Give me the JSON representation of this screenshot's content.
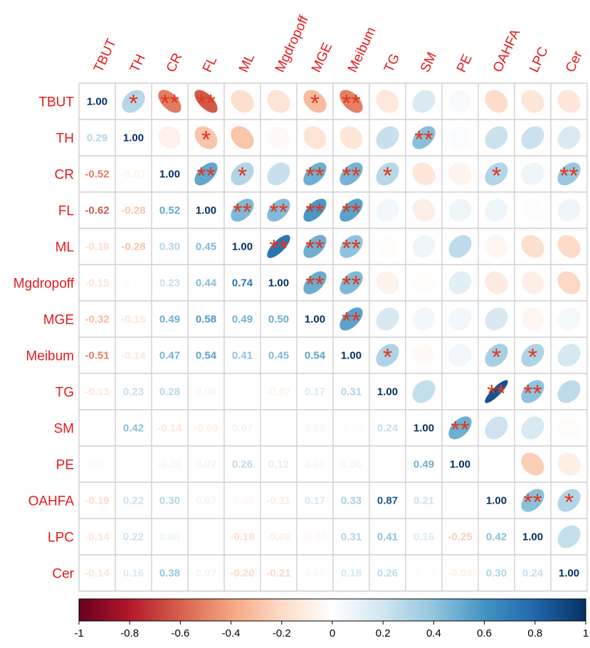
{
  "chart_data": {
    "type": "heatmap",
    "title": "",
    "variables": [
      "TBUT",
      "TH",
      "CR",
      "FL",
      "ML",
      "Mgdropoff",
      "MGE",
      "Meibum",
      "TG",
      "SM",
      "PE",
      "OAHFA",
      "LPC",
      "Cer"
    ],
    "lower_triangle_coefficients": [
      [
        1.0
      ],
      [
        0.29,
        1.0
      ],
      [
        -0.52,
        -0.07,
        1.0
      ],
      [
        -0.62,
        -0.28,
        0.52,
        1.0
      ],
      [
        -0.18,
        -0.28,
        0.3,
        0.45,
        1.0
      ],
      [
        -0.15,
        -0.03,
        0.23,
        0.44,
        0.74,
        1.0
      ],
      [
        -0.32,
        -0.15,
        0.49,
        0.58,
        0.49,
        0.5,
        1.0
      ],
      [
        -0.51,
        -0.14,
        0.47,
        0.54,
        0.41,
        0.45,
        0.54,
        1.0
      ],
      [
        -0.13,
        0.23,
        0.28,
        0.06,
        -0.01,
        -0.07,
        0.17,
        0.31,
        1.0
      ],
      [
        0.16,
        0.42,
        -0.14,
        -0.09,
        0.07,
        -0.01,
        0.06,
        -0.03,
        0.24,
        1.0
      ],
      [
        0.03,
        0.02,
        -0.06,
        0.07,
        0.26,
        0.12,
        0.06,
        0.06,
        0.0,
        0.49,
        1.0
      ],
      [
        -0.19,
        0.22,
        0.3,
        0.07,
        -0.05,
        -0.11,
        0.17,
        0.33,
        0.87,
        0.21,
        0.0,
        1.0
      ],
      [
        -0.14,
        0.22,
        0.08,
        -0.01,
        -0.18,
        -0.09,
        -0.05,
        0.31,
        0.41,
        0.16,
        -0.25,
        0.42,
        1.0
      ],
      [
        -0.14,
        0.16,
        0.38,
        0.07,
        -0.2,
        -0.21,
        0.05,
        0.18,
        0.26,
        -0.02,
        -0.09,
        0.3,
        0.24,
        1.0
      ]
    ],
    "hidden_coefficients": [
      [
        9,
        0
      ],
      [
        10,
        1
      ],
      [
        10,
        8
      ]
    ],
    "significance": [
      {
        "row": 0,
        "col": 1,
        "stars": "*"
      },
      {
        "row": 0,
        "col": 2,
        "stars": "**"
      },
      {
        "row": 0,
        "col": 3,
        "stars": "**"
      },
      {
        "row": 0,
        "col": 6,
        "stars": "*"
      },
      {
        "row": 0,
        "col": 7,
        "stars": "**"
      },
      {
        "row": 1,
        "col": 3,
        "stars": "*"
      },
      {
        "row": 1,
        "col": 9,
        "stars": "**"
      },
      {
        "row": 2,
        "col": 3,
        "stars": "**"
      },
      {
        "row": 2,
        "col": 4,
        "stars": "*"
      },
      {
        "row": 2,
        "col": 6,
        "stars": "**"
      },
      {
        "row": 2,
        "col": 7,
        "stars": "**"
      },
      {
        "row": 2,
        "col": 8,
        "stars": "*"
      },
      {
        "row": 2,
        "col": 11,
        "stars": "*"
      },
      {
        "row": 2,
        "col": 13,
        "stars": "**"
      },
      {
        "row": 3,
        "col": 4,
        "stars": "**"
      },
      {
        "row": 3,
        "col": 5,
        "stars": "**"
      },
      {
        "row": 3,
        "col": 6,
        "stars": "**"
      },
      {
        "row": 3,
        "col": 7,
        "stars": "**"
      },
      {
        "row": 4,
        "col": 5,
        "stars": "**"
      },
      {
        "row": 4,
        "col": 6,
        "stars": "**"
      },
      {
        "row": 4,
        "col": 7,
        "stars": "**"
      },
      {
        "row": 5,
        "col": 6,
        "stars": "**"
      },
      {
        "row": 5,
        "col": 7,
        "stars": "**"
      },
      {
        "row": 6,
        "col": 7,
        "stars": "**"
      },
      {
        "row": 7,
        "col": 8,
        "stars": "*"
      },
      {
        "row": 7,
        "col": 11,
        "stars": "*"
      },
      {
        "row": 7,
        "col": 12,
        "stars": "*"
      },
      {
        "row": 8,
        "col": 11,
        "stars": "**"
      },
      {
        "row": 8,
        "col": 12,
        "stars": "**"
      },
      {
        "row": 9,
        "col": 10,
        "stars": "**"
      },
      {
        "row": 11,
        "col": 12,
        "stars": "**"
      },
      {
        "row": 11,
        "col": 13,
        "stars": "*"
      }
    ],
    "colorbar": {
      "range": [
        -1,
        1
      ],
      "ticks": [
        "-1",
        "-0.8",
        "-0.6",
        "-0.4",
        "-0.2",
        "0",
        "0.2",
        "0.4",
        "0.6",
        "0.8",
        "1"
      ],
      "colors": [
        "#67001f",
        "#b2182b",
        "#d6604d",
        "#f4a582",
        "#fddbc7",
        "#ffffff",
        "#d1e5f0",
        "#92c5de",
        "#4393c3",
        "#2166ac",
        "#053061"
      ]
    },
    "star_color": "#e2361a"
  }
}
